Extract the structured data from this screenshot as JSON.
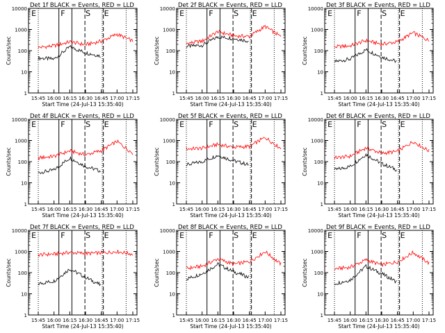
{
  "figure": {
    "start_time_label": "Start Time (24-Jul-13 15:35:40)",
    "ylabel": "Counts/sec",
    "x_tick_labels": [
      "15:45",
      "16:00",
      "16:15",
      "16:30",
      "16:45",
      "17:00",
      "17:15"
    ],
    "y_tick_labels": [
      "1",
      "10",
      "100",
      "1000",
      "10000"
    ],
    "segment_labels": [
      "E",
      "F",
      "S",
      "E"
    ],
    "legend_text": "BLACK = Events, RED = LLD",
    "colors": {
      "events": "#000000",
      "lld": "#ff0000",
      "axes": "#000000"
    }
  },
  "chart_data": [
    {
      "type": "line",
      "title": "Det 1f BLACK = Events, RED = LLD",
      "xlabel": "Start Time (24-Jul-13 15:35:40)",
      "ylabel": "Counts/sec",
      "y_scale": "log",
      "ylim": [
        1,
        10000
      ],
      "categories": [
        "15:45",
        "16:00",
        "16:15",
        "16:30",
        "16:45",
        "17:00",
        "17:15"
      ],
      "series": [
        {
          "name": "Events",
          "values": [
            45,
            40,
            150,
            80,
            55,
            null,
            null
          ]
        },
        {
          "name": "LLD",
          "values": [
            140,
            170,
            260,
            190,
            280,
            600,
            280
          ]
        }
      ]
    },
    {
      "type": "line",
      "title": "Det 2f BLACK = Events, RED = LLD",
      "xlabel": "Start Time (24-Jul-13 15:35:40)",
      "ylabel": "Counts/sec",
      "y_scale": "log",
      "ylim": [
        1,
        10000
      ],
      "categories": [
        "15:45",
        "16:00",
        "16:15",
        "16:30",
        "16:45",
        "17:00",
        "17:15"
      ],
      "series": [
        {
          "name": "Events",
          "values": [
            160,
            180,
            450,
            380,
            280,
            null,
            null
          ]
        },
        {
          "name": "LLD",
          "values": [
            220,
            280,
            800,
            500,
            470,
            1400,
            450
          ]
        }
      ]
    },
    {
      "type": "line",
      "title": "Det 3f BLACK = Events, RED = LLD",
      "xlabel": "Start Time (24-Jul-13 15:35:40)",
      "ylabel": "Counts/sec",
      "y_scale": "log",
      "ylim": [
        1,
        10000
      ],
      "categories": [
        "15:45",
        "16:00",
        "16:15",
        "16:30",
        "16:45",
        "17:00",
        "17:15"
      ],
      "series": [
        {
          "name": "Events",
          "values": [
            30,
            40,
            110,
            50,
            30,
            null,
            null
          ]
        },
        {
          "name": "LLD",
          "values": [
            150,
            170,
            300,
            200,
            260,
            700,
            300
          ]
        }
      ]
    },
    {
      "type": "line",
      "title": "Det 4f BLACK = Events, RED = LLD",
      "xlabel": "Start Time (24-Jul-13 15:35:40)",
      "ylabel": "Counts/sec",
      "y_scale": "log",
      "ylim": [
        1,
        10000
      ],
      "categories": [
        "15:45",
        "16:00",
        "16:15",
        "16:30",
        "16:45",
        "17:00",
        "17:15"
      ],
      "series": [
        {
          "name": "Events",
          "values": [
            30,
            40,
            150,
            60,
            35,
            null,
            null
          ]
        },
        {
          "name": "LLD",
          "values": [
            150,
            180,
            320,
            210,
            330,
            900,
            250
          ]
        }
      ]
    },
    {
      "type": "line",
      "title": "Det 5f BLACK = Events, RED = LLD",
      "xlabel": "Start Time (24-Jul-13 15:35:40)",
      "ylabel": "Counts/sec",
      "y_scale": "log",
      "ylim": [
        1,
        10000
      ],
      "categories": [
        "15:45",
        "16:00",
        "16:15",
        "16:30",
        "16:45",
        "17:00",
        "17:15"
      ],
      "series": [
        {
          "name": "Events",
          "values": [
            70,
            100,
            200,
            110,
            70,
            null,
            null
          ]
        },
        {
          "name": "LLD",
          "values": [
            400,
            430,
            650,
            480,
            520,
            1400,
            420
          ]
        }
      ]
    },
    {
      "type": "line",
      "title": "Det 6f BLACK = Events, RED = LLD",
      "xlabel": "Start Time (24-Jul-13 15:35:40)",
      "ylabel": "Counts/sec",
      "y_scale": "log",
      "ylim": [
        1,
        10000
      ],
      "categories": [
        "15:45",
        "16:00",
        "16:15",
        "16:30",
        "16:45",
        "17:00",
        "17:15"
      ],
      "series": [
        {
          "name": "Events",
          "values": [
            40,
            60,
            220,
            80,
            40,
            null,
            null
          ]
        },
        {
          "name": "LLD",
          "values": [
            150,
            180,
            450,
            250,
            300,
            900,
            320
          ]
        }
      ]
    },
    {
      "type": "line",
      "title": "Det 7f BLACK = Events, RED = LLD",
      "xlabel": "Start Time (24-Jul-13 15:35:40)",
      "ylabel": "Counts/sec",
      "y_scale": "log",
      "ylim": [
        1,
        10000
      ],
      "categories": [
        "15:45",
        "16:00",
        "16:15",
        "16:30",
        "16:45",
        "17:00",
        "17:15"
      ],
      "series": [
        {
          "name": "Events",
          "values": [
            30,
            40,
            150,
            60,
            25,
            null,
            null
          ]
        },
        {
          "name": "LLD",
          "values": [
            700,
            750,
            900,
            800,
            850,
            1000,
            750
          ]
        }
      ]
    },
    {
      "type": "line",
      "title": "Det 8f BLACK = Events, RED = LLD",
      "xlabel": "Start Time (24-Jul-13 15:35:40)",
      "ylabel": "Counts/sec",
      "y_scale": "log",
      "ylim": [
        1,
        10000
      ],
      "categories": [
        "15:45",
        "16:00",
        "16:15",
        "16:30",
        "16:45",
        "17:00",
        "17:15"
      ],
      "series": [
        {
          "name": "Events",
          "values": [
            50,
            90,
            250,
            110,
            60,
            null,
            null
          ]
        },
        {
          "name": "LLD",
          "values": [
            160,
            200,
            450,
            250,
            330,
            1000,
            250
          ]
        }
      ]
    },
    {
      "type": "line",
      "title": "Det 9f BLACK = Events, RED = LLD",
      "xlabel": "Start Time (24-Jul-13 15:35:40)",
      "ylabel": "Counts/sec",
      "y_scale": "log",
      "ylim": [
        1,
        10000
      ],
      "categories": [
        "15:45",
        "16:00",
        "16:15",
        "16:30",
        "16:45",
        "17:00",
        "17:15"
      ],
      "series": [
        {
          "name": "Events",
          "values": [
            30,
            45,
            200,
            90,
            35,
            null,
            null
          ]
        },
        {
          "name": "LLD",
          "values": [
            150,
            180,
            400,
            230,
            330,
            900,
            280
          ]
        }
      ]
    }
  ]
}
